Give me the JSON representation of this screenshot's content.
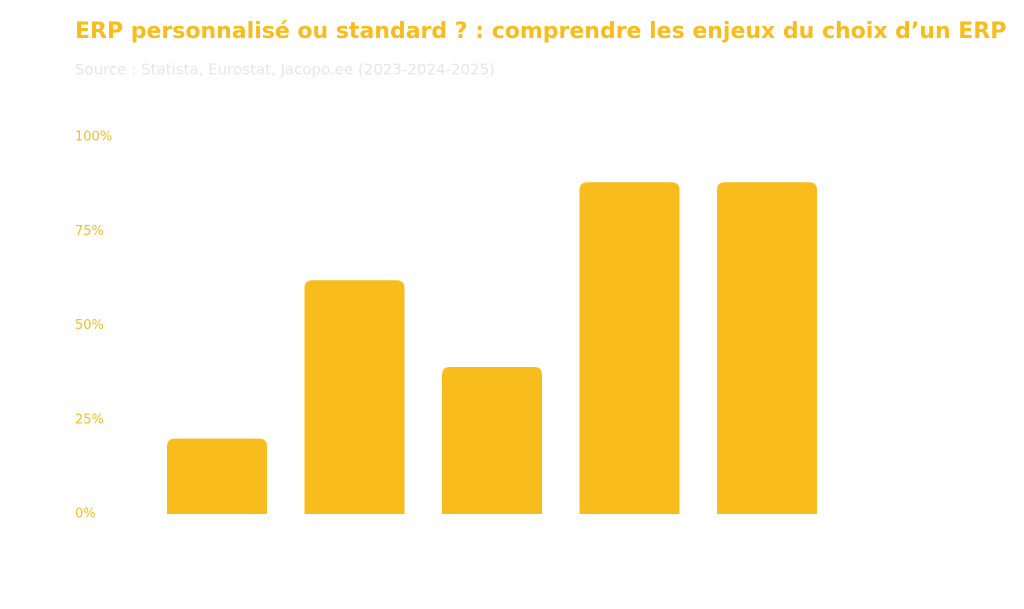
{
  "chart_data": {
    "type": "bar",
    "title": "ERP personnalisé ou standard ? : comprendre les enjeux du choix d’un ERP",
    "subtitle": "Source : Statista, Eurostat, Jacopo.ee (2023-2024-2025)",
    "values": [
      20,
      62,
      39,
      88,
      88
    ],
    "color": "#f8bc1c",
    "ylim": [
      0,
      100
    ],
    "yticks": [
      {
        "value": 0,
        "label": "0%"
      },
      {
        "value": 25,
        "label": "25%"
      },
      {
        "value": 50,
        "label": "50%"
      },
      {
        "value": 75,
        "label": "75%"
      },
      {
        "value": 100,
        "label": "100%"
      }
    ],
    "grid": false
  }
}
